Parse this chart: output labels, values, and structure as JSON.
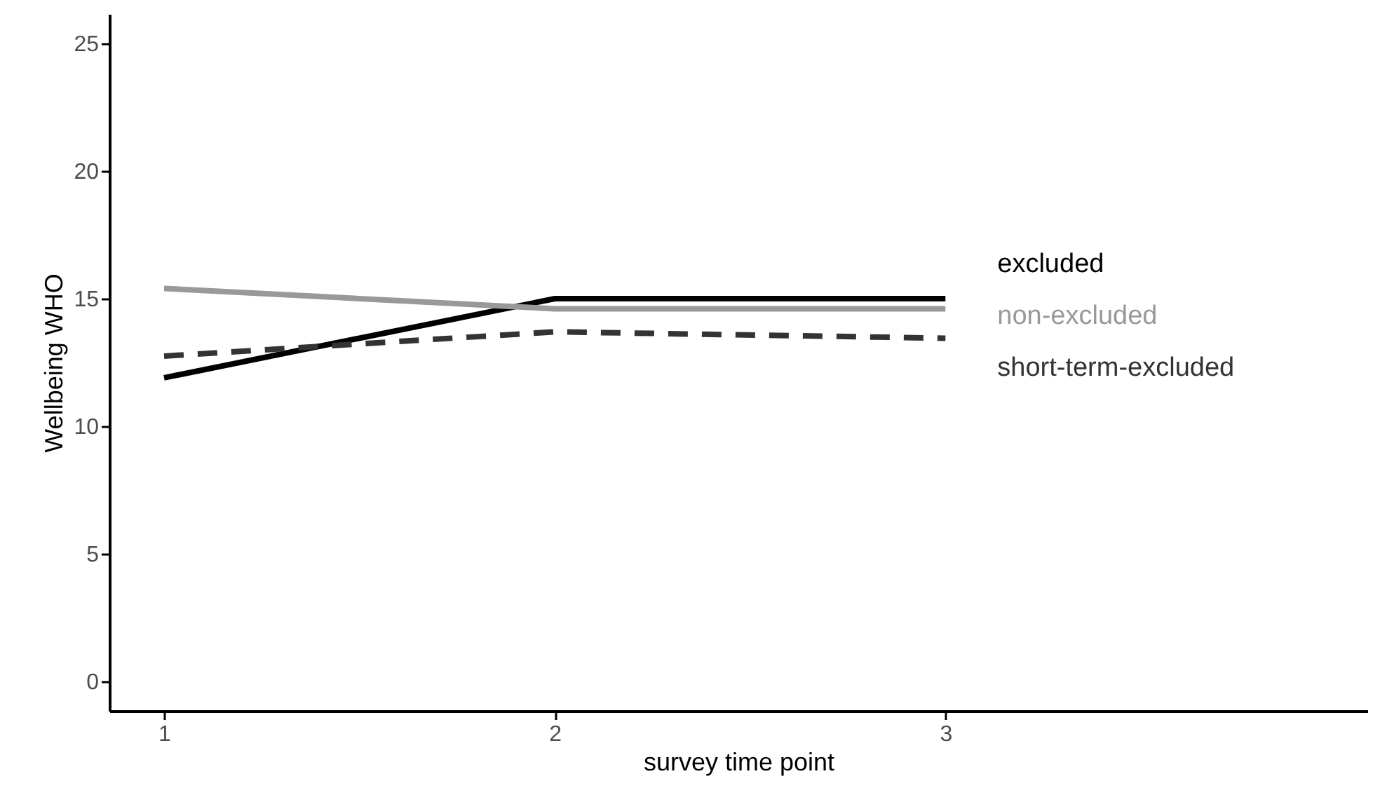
{
  "chart_data": {
    "type": "line",
    "xlabel": "survey time point",
    "ylabel": "Wellbeing WHO",
    "x": [
      1,
      2,
      3
    ],
    "xlim": [
      0.86,
      4.08
    ],
    "xticks": [
      1,
      2,
      3
    ],
    "ylim": [
      -1.15,
      26.15
    ],
    "yticks": [
      0,
      5,
      10,
      15,
      20,
      25
    ],
    "grid": false,
    "marker": "none",
    "series": [
      {
        "name": "excluded",
        "color": "#000000",
        "line_style": "solid",
        "values": [
          11.9,
          15.0,
          15.0
        ]
      },
      {
        "name": "non-excluded",
        "color": "#999999",
        "line_style": "solid",
        "values": [
          15.4,
          14.6,
          14.6
        ]
      },
      {
        "name": "short-term-excluded",
        "color": "#333333",
        "line_style": "dashed",
        "values": [
          12.75,
          13.7,
          13.45
        ]
      }
    ]
  }
}
